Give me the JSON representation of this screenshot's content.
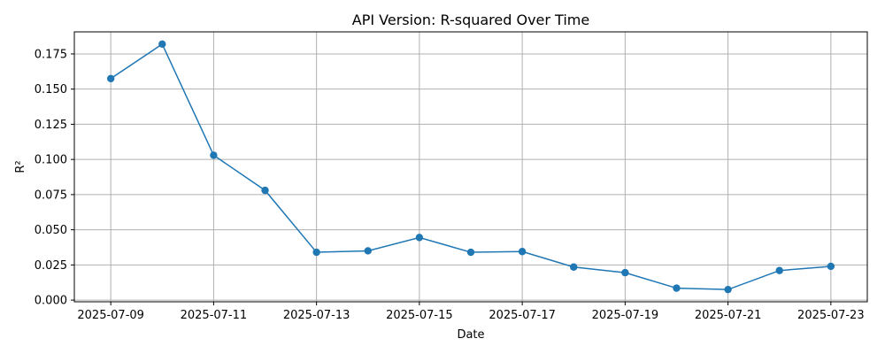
{
  "chart_data": {
    "type": "line",
    "title": "API Version: R-squared Over Time",
    "xlabel": "Date",
    "ylabel": "R²",
    "x": [
      "2025-07-09",
      "2025-07-10",
      "2025-07-11",
      "2025-07-12",
      "2025-07-13",
      "2025-07-14",
      "2025-07-15",
      "2025-07-16",
      "2025-07-17",
      "2025-07-18",
      "2025-07-19",
      "2025-07-20",
      "2025-07-21",
      "2025-07-22",
      "2025-07-23"
    ],
    "series": [
      {
        "values": [
          0.1575,
          0.182,
          0.103,
          0.078,
          0.034,
          0.035,
          0.0445,
          0.034,
          0.0345,
          0.0235,
          0.0195,
          0.0085,
          0.0075,
          0.021,
          0.024
        ],
        "color": "#1f77b4",
        "marker": "circle"
      }
    ],
    "xticks": [
      "2025-07-09",
      "2025-07-11",
      "2025-07-13",
      "2025-07-15",
      "2025-07-17",
      "2025-07-19",
      "2025-07-21",
      "2025-07-23"
    ],
    "yticks": [
      "0.000",
      "0.025",
      "0.050",
      "0.075",
      "0.100",
      "0.125",
      "0.150",
      "0.175"
    ],
    "ylim": [
      -0.0012,
      0.1907
    ],
    "xlim": [
      "2025-07-08 07:00",
      "2025-07-23 17:00"
    ],
    "grid": true
  }
}
